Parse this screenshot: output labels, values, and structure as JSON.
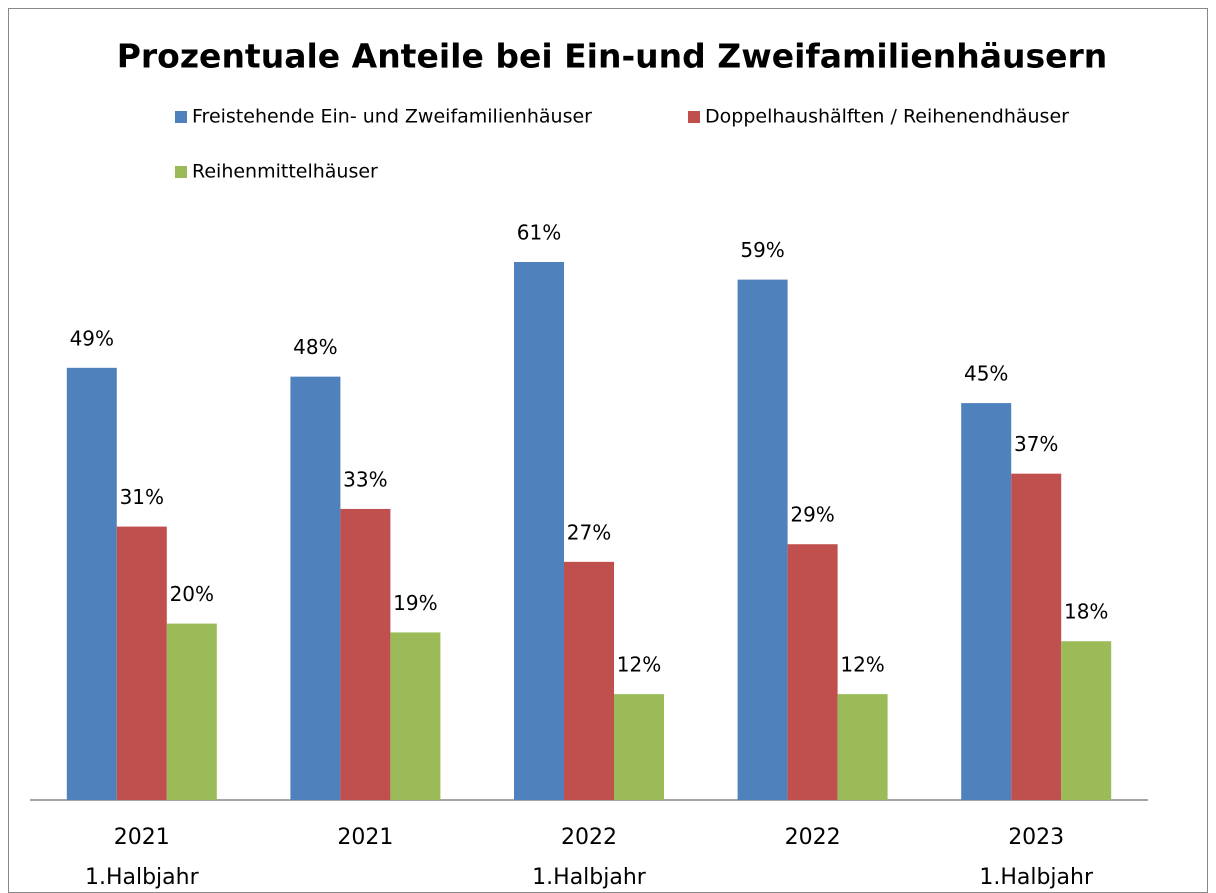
{
  "chart_data": {
    "type": "bar",
    "title": "Prozentuale Anteile bei Ein-und Zweifamilienhäusern",
    "categories": [
      [
        "2021",
        "1.Halbjahr"
      ],
      [
        "2021"
      ],
      [
        "2022",
        "1.Halbjahr"
      ],
      [
        "2022"
      ],
      [
        "2023",
        "1.Halbjahr"
      ]
    ],
    "series": [
      {
        "name": "Freistehende Ein- und Zweifamilienhäuser",
        "color": "#4f81bd",
        "values": [
          49,
          48,
          61,
          59,
          45
        ],
        "value_labels": [
          "49%",
          "48%",
          "61%",
          "59%",
          "45%"
        ]
      },
      {
        "name": "Doppelhaushälften / Reihenendhäuser",
        "color": "#c0504d",
        "values": [
          31,
          33,
          27,
          29,
          37
        ],
        "value_labels": [
          "31%",
          "33%",
          "27%",
          "29%",
          "37%"
        ]
      },
      {
        "name": "Reihenmittelhäuser",
        "color": "#9bbb59",
        "values": [
          20,
          19,
          12,
          12,
          18
        ],
        "value_labels": [
          "20%",
          "19%",
          "12%",
          "12%",
          "18%"
        ]
      }
    ],
    "ylim": [
      0,
      70
    ]
  }
}
